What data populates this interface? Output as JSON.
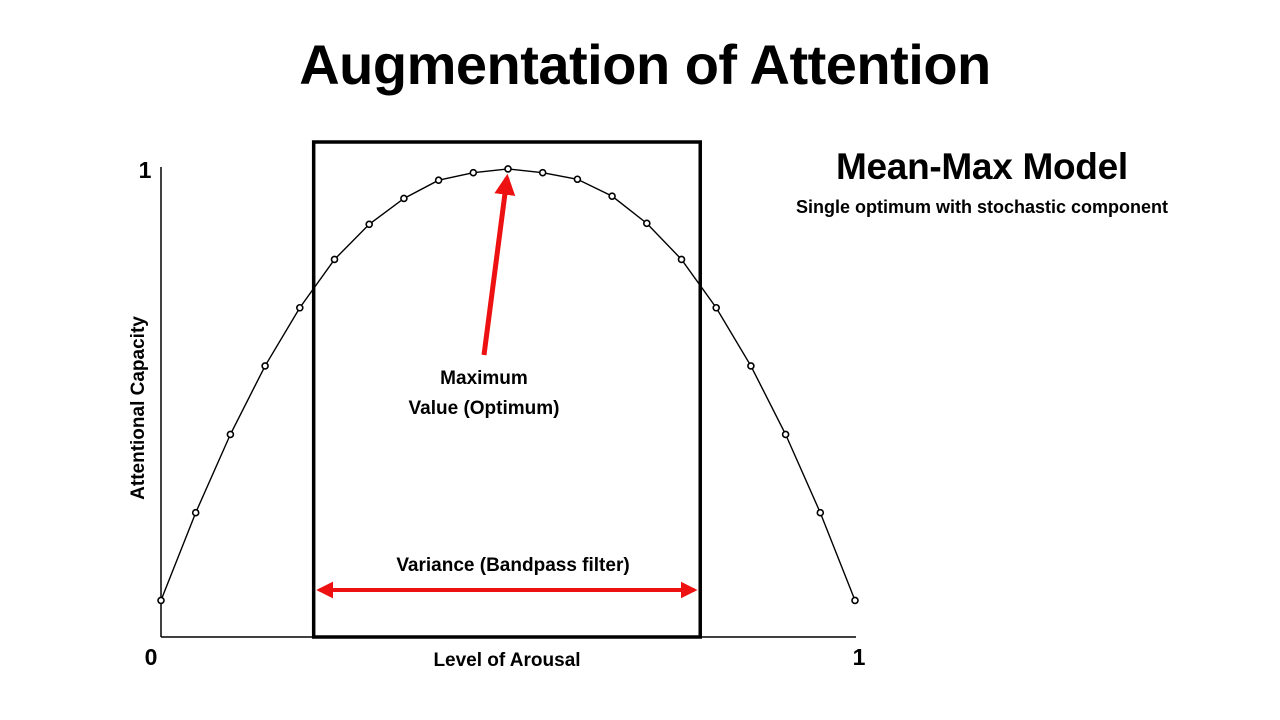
{
  "slide": {
    "title": "Augmentation of Attention"
  },
  "model": {
    "title": "Mean-Max Model",
    "subtitle": "Single optimum with stochastic component"
  },
  "colors": {
    "line": "#000000",
    "arrow": "#ee1111"
  },
  "chart_data": {
    "type": "line",
    "xlabel": "Level of Arousal",
    "ylabel": "Attentional Capacity",
    "xlim": [
      0,
      1
    ],
    "ylim": [
      0,
      1
    ],
    "x_ticks": [
      "0",
      "1"
    ],
    "y_ticks": [
      "1"
    ],
    "grid": false,
    "legend": "none",
    "series": [
      {
        "x": [
          0,
          0.05,
          0.1,
          0.15,
          0.2,
          0.25,
          0.3,
          0.35,
          0.4,
          0.45,
          0.5,
          0.55,
          0.6,
          0.65,
          0.7,
          0.75,
          0.8,
          0.85,
          0.9,
          0.95,
          1
        ],
        "y": [
          0.078,
          0.265,
          0.432,
          0.578,
          0.702,
          0.805,
          0.88,
          0.935,
          0.974,
          0.99,
          0.998,
          0.99,
          0.976,
          0.94,
          0.882,
          0.805,
          0.702,
          0.578,
          0.432,
          0.265,
          0.078
        ]
      }
    ],
    "annotations": {
      "box": {
        "x_range": [
          0.22,
          0.777
        ],
        "label": "Variance (Bandpass filter)"
      },
      "peak_arrow": {
        "label_line1": "Maximum",
        "label_line2": "Value (Optimum)",
        "target_x": 0.5,
        "target_y": 0.998
      }
    }
  }
}
